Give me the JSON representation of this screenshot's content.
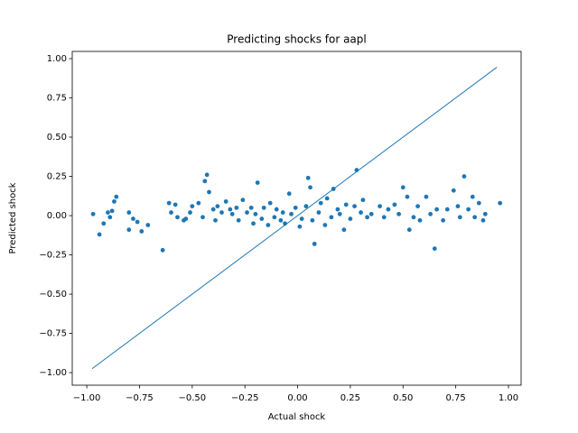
{
  "chart_data": {
    "type": "scatter",
    "title": "Predicting shocks for aapl",
    "x_label": "Actual shock",
    "y_label": "Predicted shock",
    "xlim": [
      -1.069,
      1.06
    ],
    "ylim": [
      -1.08,
      1.046
    ],
    "xticks": [
      {
        "value": -1,
        "label": "−1.00"
      },
      {
        "value": -0.75,
        "label": "−0.75"
      },
      {
        "value": -0.5,
        "label": "−0.50"
      },
      {
        "value": -0.25,
        "label": "−0.25"
      },
      {
        "value": 0,
        "label": "0.00"
      },
      0.25,
      {
        "value": 0.5,
        "label": "0.50"
      },
      0.75,
      {
        "value": 1,
        "label": "1.00"
      }
    ],
    "yticks": [
      {
        "value": -1,
        "label": "−1.00"
      },
      {
        "value": -0.75,
        "label": "−0.75"
      },
      {
        "value": -0.5,
        "label": "−0.50"
      },
      {
        "value": -0.25,
        "label": "−0.25"
      },
      {
        "value": 0,
        "label": "0.00"
      },
      0.25,
      {
        "value": 0.5,
        "label": "0.50"
      },
      0.75,
      {
        "value": 1,
        "label": "1.00"
      }
    ],
    "series": [
      {
        "type": "scatter",
        "color": "#1f77b4",
        "x": [
          -0.97,
          -0.94,
          -0.92,
          -0.9,
          -0.89,
          -0.88,
          -0.87,
          -0.86,
          -0.8,
          -0.8,
          -0.78,
          -0.76,
          -0.74,
          -0.71,
          -0.64,
          -0.61,
          -0.6,
          -0.58,
          -0.57,
          -0.54,
          -0.53,
          -0.51,
          -0.5,
          -0.47,
          -0.45,
          -0.44,
          -0.43,
          -0.42,
          -0.4,
          -0.39,
          -0.38,
          -0.36,
          -0.34,
          -0.32,
          -0.31,
          -0.29,
          -0.28,
          -0.26,
          -0.24,
          -0.22,
          -0.21,
          -0.2,
          -0.19,
          -0.17,
          -0.16,
          -0.14,
          -0.13,
          -0.11,
          -0.1,
          -0.08,
          -0.07,
          -0.06,
          -0.04,
          -0.03,
          -0.01,
          0.01,
          0.02,
          0.04,
          0.05,
          0.06,
          0.07,
          0.08,
          0.1,
          0.11,
          0.13,
          0.14,
          0.16,
          0.17,
          0.19,
          0.2,
          0.22,
          0.23,
          0.25,
          0.27,
          0.28,
          0.3,
          0.31,
          0.33,
          0.35,
          0.39,
          0.41,
          0.43,
          0.46,
          0.48,
          0.5,
          0.52,
          0.53,
          0.55,
          0.57,
          0.58,
          0.61,
          0.63,
          0.65,
          0.66,
          0.69,
          0.71,
          0.74,
          0.76,
          0.77,
          0.79,
          0.81,
          0.83,
          0.84,
          0.86,
          0.88,
          0.89,
          0.96
        ],
        "values": [
          0.01,
          -0.12,
          -0.05,
          0.02,
          -0.01,
          0.03,
          0.09,
          0.12,
          -0.09,
          0.02,
          -0.02,
          -0.04,
          -0.1,
          -0.06,
          -0.22,
          0.08,
          0.02,
          0.07,
          -0.01,
          -0.03,
          -0.02,
          0.02,
          0.06,
          0.08,
          -0.01,
          0.22,
          0.26,
          0.15,
          0.04,
          -0.03,
          0.06,
          0.02,
          0.09,
          0.04,
          0.01,
          0.05,
          -0.03,
          0.1,
          0.02,
          0.05,
          -0.05,
          0.01,
          0.21,
          -0.02,
          0.05,
          -0.06,
          0.08,
          -0.01,
          0.04,
          -0.03,
          0.02,
          -0.05,
          0.14,
          0.01,
          0.05,
          -0.07,
          -0.02,
          0.06,
          0.24,
          0.18,
          -0.03,
          -0.18,
          0.02,
          0.08,
          -0.06,
          0.11,
          -0.01,
          0.17,
          0.04,
          0.01,
          -0.09,
          0.07,
          -0.02,
          0.06,
          0.29,
          0.02,
          0.1,
          -0.01,
          0.01,
          0.06,
          -0.01,
          0.04,
          0.07,
          0.01,
          0.18,
          0.12,
          -0.09,
          -0.01,
          0.06,
          -0.03,
          0.12,
          0.01,
          -0.21,
          0.04,
          -0.03,
          0.04,
          0.16,
          0.06,
          -0.01,
          0.25,
          0.04,
          0.12,
          -0.01,
          0.08,
          -0.03,
          0.01,
          0.08
        ]
      },
      {
        "type": "line",
        "color": "#1f77b4",
        "x": [
          -0.975,
          0.945
        ],
        "values": [
          -0.975,
          0.945
        ]
      }
    ]
  }
}
